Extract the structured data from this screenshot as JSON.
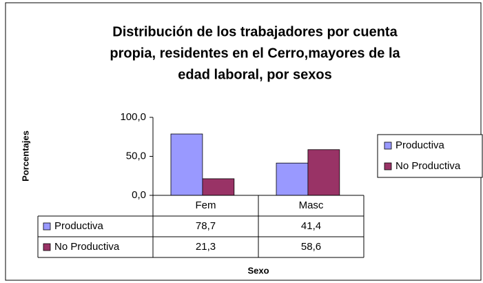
{
  "chart_data": {
    "type": "bar",
    "title": [
      "Distribución de los trabajadores por cuenta",
      "propia, residentes en el Cerro,mayores de la",
      "edad laboral, por sexos"
    ],
    "categories": [
      "Fem",
      "Masc"
    ],
    "series": [
      {
        "name": "Productiva",
        "color": "#9999ff",
        "values": [
          78.7,
          41.4
        ],
        "value_labels": [
          "78,7",
          "41,4"
        ]
      },
      {
        "name": "No Productiva",
        "color": "#993366",
        "values": [
          21.3,
          58.6
        ],
        "value_labels": [
          "21,3",
          "58,6"
        ]
      }
    ],
    "ylabel": "Porcentajes",
    "xlabel": "Sexo",
    "ylim": [
      0,
      100
    ],
    "yticks": [
      {
        "value": 0,
        "label": "0,0"
      },
      {
        "value": 50,
        "label": "50,0"
      },
      {
        "value": 100,
        "label": "100,0"
      }
    ],
    "legend": "right"
  }
}
